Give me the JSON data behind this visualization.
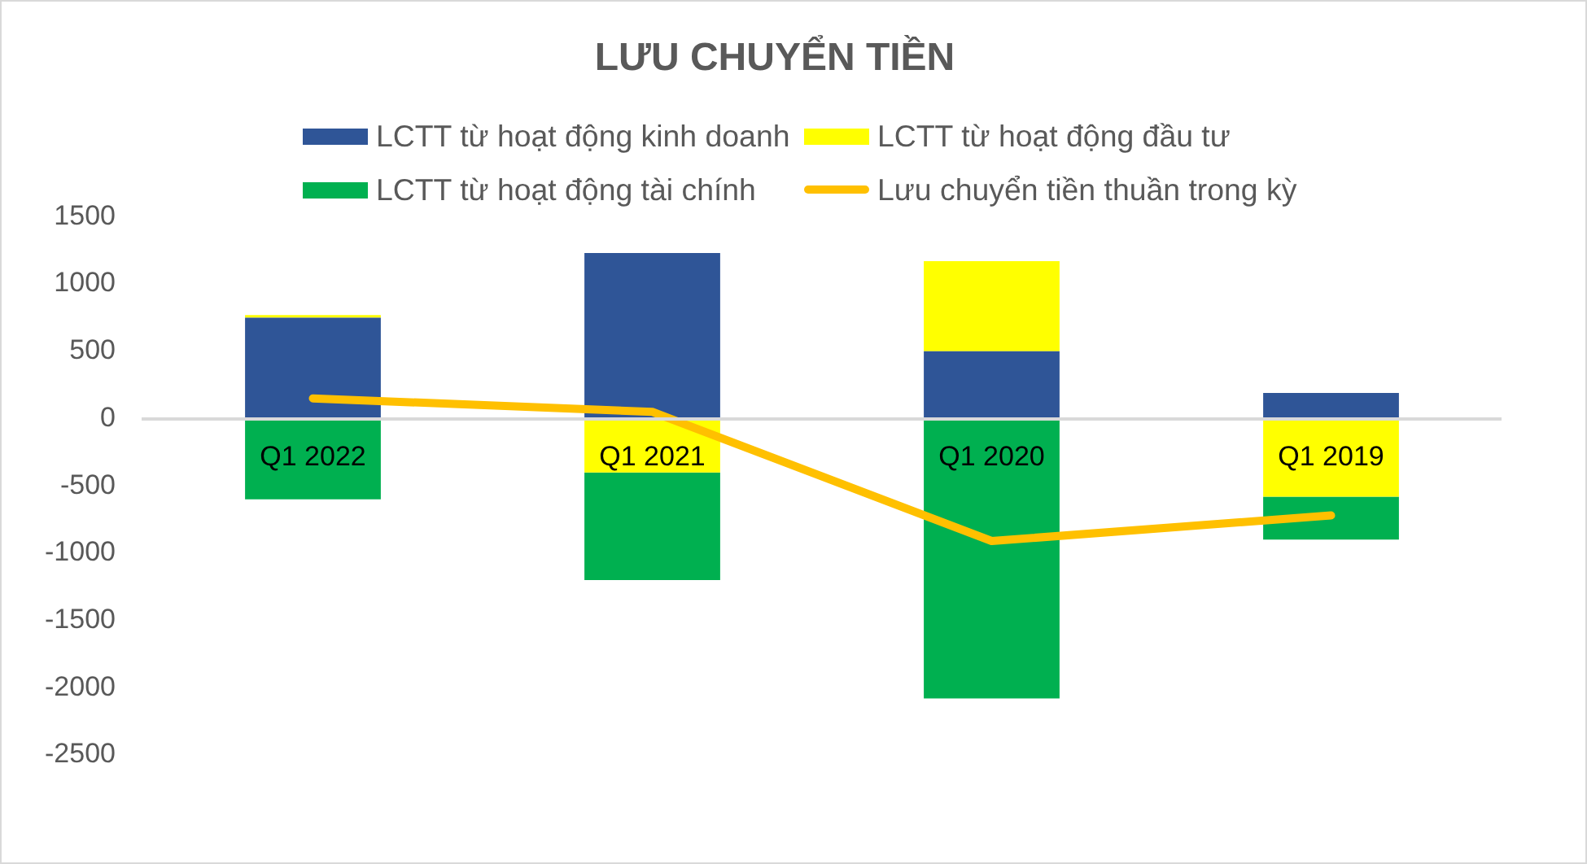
{
  "chart_data": {
    "type": "bar",
    "title": "LƯU CHUYỂN TIỀN",
    "categories": [
      "Q1 2022",
      "Q1 2021",
      "Q1 2020",
      "Q1 2019"
    ],
    "stacked": true,
    "series": [
      {
        "name": "LCTT từ hoạt động kinh doanh",
        "color": "#2f5597",
        "values": [
          750,
          1230,
          500,
          190
        ]
      },
      {
        "name": "LCTT từ hoạt động đầu tư",
        "color": "#ffff00",
        "values": [
          20,
          -400,
          670,
          -580
        ]
      },
      {
        "name": "LCTT từ hoạt động tài chính",
        "color": "#00b050",
        "values": [
          -600,
          -800,
          -2080,
          -320
        ]
      },
      {
        "name": "Lưu chuyển tiền thuần trong kỳ",
        "type": "line",
        "color": "#ffc000",
        "values": [
          150,
          50,
          -910,
          -720
        ]
      }
    ],
    "ylim": [
      -2500,
      1500
    ],
    "yticks": [
      -2500,
      -2000,
      -1500,
      -1000,
      -500,
      0,
      500,
      1000,
      1500
    ],
    "grid": false,
    "legend": "top",
    "marker": "none"
  }
}
